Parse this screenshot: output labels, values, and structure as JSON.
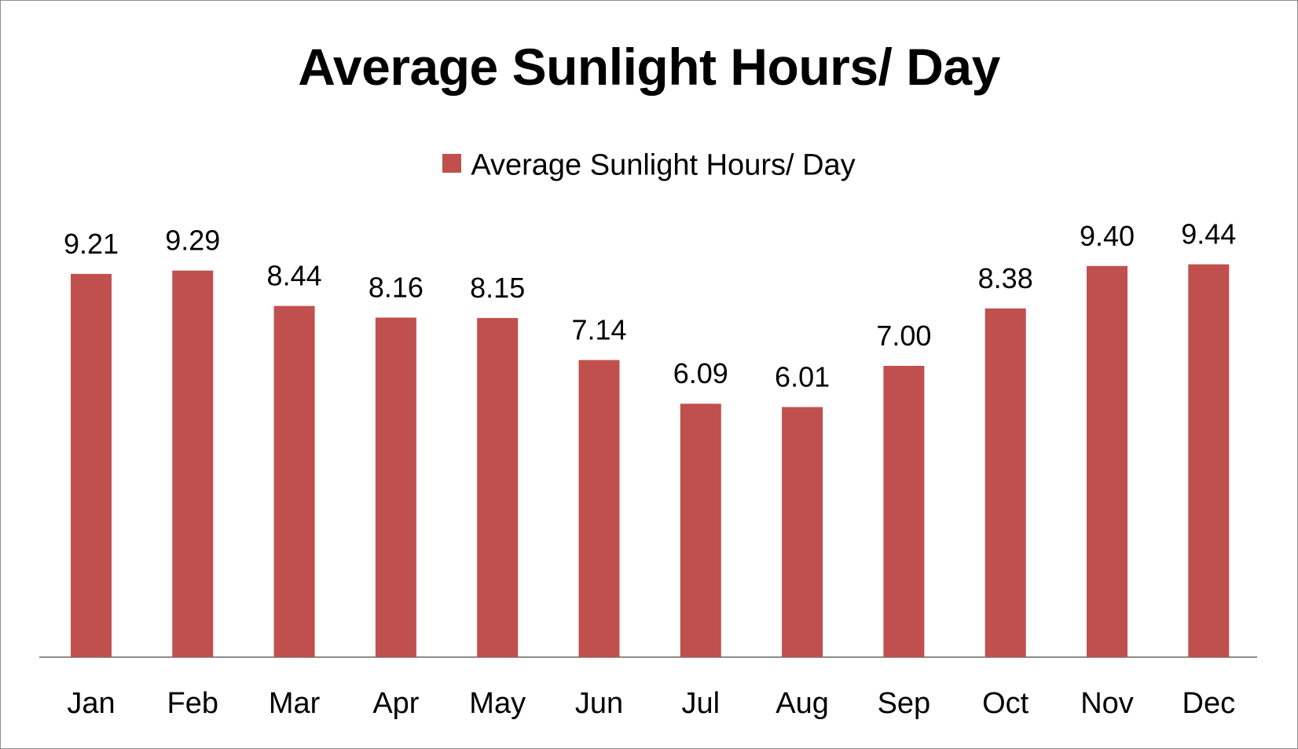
{
  "chart_data": {
    "type": "bar",
    "title": "Average Sunlight Hours/ Day",
    "categories": [
      "Jan",
      "Feb",
      "Mar",
      "Apr",
      "May",
      "Jun",
      "Jul",
      "Aug",
      "Sep",
      "Oct",
      "Nov",
      "Dec"
    ],
    "series": [
      {
        "name": "Average Sunlight Hours/ Day",
        "values": [
          9.21,
          9.29,
          8.44,
          8.16,
          8.15,
          7.14,
          6.09,
          6.01,
          7.0,
          8.38,
          9.4,
          9.44
        ],
        "value_labels": [
          "9.21",
          "9.29",
          "8.44",
          "8.16",
          "8.15",
          "7.14",
          "6.09",
          "6.01",
          "7.00",
          "8.38",
          "9.40",
          "9.44"
        ],
        "color": "#c0504d"
      }
    ],
    "ylim": [
      0,
      10
    ],
    "grid": false,
    "legend_position": "top-center",
    "data_labels": true
  },
  "colors": {
    "bar": "#c0504d",
    "axis": "#8c8c8c",
    "text": "#000000"
  }
}
